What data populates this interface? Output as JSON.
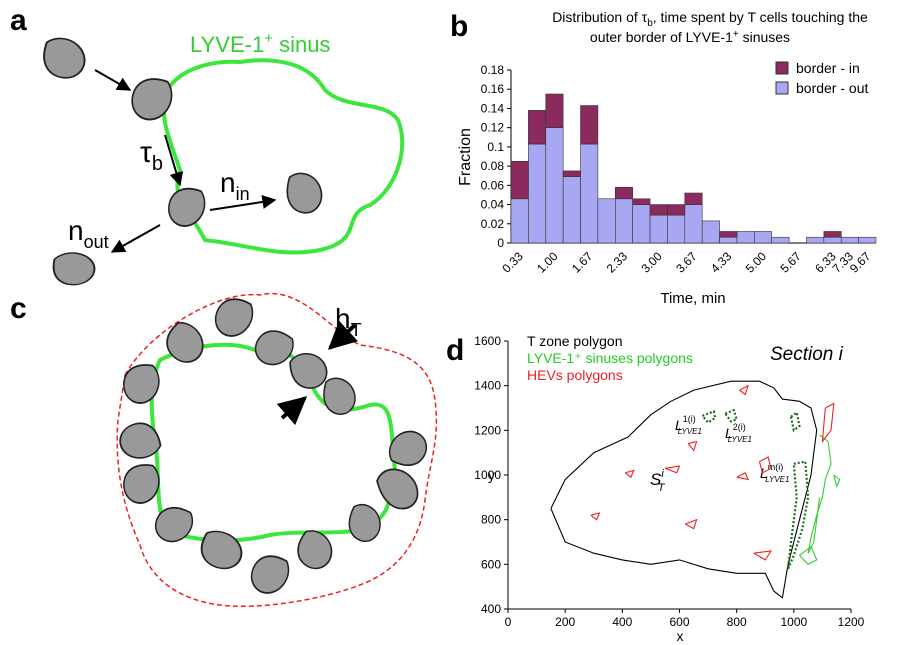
{
  "panels": {
    "a": "a",
    "b": "b",
    "c": "c",
    "d": "d"
  },
  "diagram_a": {
    "sinus": {
      "main": "LYVE-1",
      "sup": "+",
      "after": " sinus"
    },
    "tau": {
      "main": "τ",
      "sub": "b"
    },
    "n_in": {
      "main": "n",
      "sub": "in"
    },
    "n_out": {
      "main": "n",
      "sub": "out"
    }
  },
  "diagram_c": {
    "h": {
      "main": "h",
      "sub": "T"
    }
  },
  "chart_data": [
    {
      "type": "bar",
      "stacked": true,
      "title": {
        "line1": {
          "before": "Distribution of  τ",
          "sub": "b",
          "after": ", time spent by T cells  touching the"
        },
        "line2": {
          "before": "outer border of LYVE-1",
          "sup": "+",
          "after": " sinuses"
        }
      },
      "x_label": "Time, min",
      "y_label": "Fraction",
      "categories": [
        "0.33",
        null,
        "1.00",
        null,
        "1.67",
        null,
        "2.33",
        null,
        "3.00",
        null,
        "3.67",
        null,
        "4.33",
        null,
        "5.00",
        null,
        "5.67",
        null,
        "6.33",
        "7.33",
        "9.67"
      ],
      "series": [
        {
          "name": "border - out",
          "color": "#a8a8f2",
          "values": [
            0.046,
            0.103,
            0.12,
            0.069,
            0.103,
            0.046,
            0.046,
            0.04,
            0.029,
            0.029,
            0.04,
            0.023,
            0.006,
            0.012,
            0.012,
            0.006,
            0,
            0.006,
            0.006,
            0.006,
            0.006
          ]
        },
        {
          "name": "border - in",
          "color": "#8b2a5c",
          "values": [
            0.039,
            0.035,
            0.035,
            0.006,
            0.04,
            0,
            0.012,
            0.006,
            0.011,
            0.011,
            0.012,
            0,
            0.006,
            0,
            0,
            0,
            0,
            0,
            0.006,
            0,
            0
          ]
        }
      ],
      "ylim": [
        0,
        0.18
      ],
      "yticks": [
        0,
        0.02,
        0.04,
        0.06,
        0.08,
        0.1,
        0.12,
        0.14,
        0.16,
        0.18
      ],
      "legend": "upper right"
    },
    {
      "type": "polygon",
      "x_label": "x",
      "y_label": "y",
      "xlim": [
        0,
        1200
      ],
      "xticks": [
        0,
        200,
        400,
        600,
        800,
        1000,
        1200
      ],
      "ylim": [
        400,
        1600
      ],
      "yticks": [
        400,
        600,
        800,
        1000,
        1200,
        1400,
        1600
      ],
      "annotation": "Section i",
      "region_label": {
        "main": "S",
        "sup": "i",
        "sub": "T"
      },
      "polygon_labels": [
        {
          "main": "L",
          "sup": "1(i)",
          "sub": "LYVE1"
        },
        {
          "main": "L",
          "sup": "2(i)",
          "sub": "LYVE1"
        },
        {
          "main": "L",
          "sup": "m(i)",
          "sub": "LYVE1"
        }
      ],
      "series": [
        {
          "name": "T zone polygon",
          "color": "#000000",
          "polygons": [
            {
              "x": [
                150,
                200,
                300,
                420,
                500,
                570,
                650,
                780,
                880,
                930,
                960,
                1020,
                1060,
                1080,
                1070,
                1060,
                1040,
                1020,
                1000,
                980,
                960,
                930,
                900,
                800,
                700,
                600,
                500,
                400,
                300,
                200,
                150
              ],
              "y": [
                850,
                980,
                1100,
                1170,
                1270,
                1330,
                1380,
                1420,
                1420,
                1390,
                1340,
                1330,
                1300,
                1200,
                1100,
                1000,
                900,
                800,
                700,
                600,
                450,
                480,
                560,
                560,
                580,
                620,
                600,
                620,
                650,
                700,
                850
              ]
            }
          ]
        },
        {
          "name": "LYVE-1⁺ sinuses polygons",
          "color": "#33cc33",
          "polygons": [
            {
              "x": [
                1090,
                1120,
                1130,
                1110,
                1100,
                1080,
                1060,
                1050,
                1070,
                1090
              ],
              "y": [
                1180,
                1150,
                1050,
                980,
                900,
                820,
                720,
                650,
                700,
                900
              ]
            },
            {
              "x": [
                1140,
                1160,
                1150,
                1140
              ],
              "y": [
                1000,
                980,
                950,
                1000
              ]
            },
            {
              "x": [
                1020,
                1060,
                1080,
                1050,
                1020
              ],
              "y": [
                640,
                680,
                620,
                600,
                640
              ]
            }
          ],
          "highlighted": {
            "color": "#1a6e1a",
            "polygons": [
              {
                "x": [
                  680,
                  720,
                  725,
                  700,
                  680
                ],
                "y": [
                  1265,
                  1285,
                  1255,
                  1235,
                  1265
                ]
              },
              {
                "x": [
                  760,
                  790,
                  800,
                  780,
                  760
                ],
                "y": [
                  1275,
                  1290,
                  1250,
                  1240,
                  1275
                ]
              },
              {
                "x": [
                  990,
                  1010,
                  1020,
                  1000,
                  990
                ],
                "y": [
                  1260,
                  1280,
                  1220,
                  1200,
                  1260
                ]
              },
              {
                "x": [
                  1000,
                  1040,
                  1050,
                  1030,
                  1000,
                  980,
                  990,
                  1010,
                  1000
                ],
                "y": [
                  1050,
                  1060,
                  900,
                  760,
                  640,
                  580,
                  700,
                  900,
                  1050
                ]
              }
            ]
          }
        },
        {
          "name": "HEVs polygons",
          "color": "#ee2222",
          "polygons": [
            {
              "x": [
                410,
                440,
                430,
                410
              ],
              "y": [
                1010,
                1020,
                990,
                1010
              ]
            },
            {
              "x": [
                630,
                660,
                650,
                630
              ],
              "y": [
                1140,
                1150,
                1110,
                1140
              ]
            },
            {
              "x": [
                550,
                600,
                590,
                550
              ],
              "y": [
                1030,
                1040,
                1010,
                1030
              ]
            },
            {
              "x": [
                880,
                910,
                920,
                890,
                880
              ],
              "y": [
                1060,
                1080,
                1030,
                1010,
                1060
              ]
            },
            {
              "x": [
                800,
                830,
                840,
                800
              ],
              "y": [
                990,
                1010,
                980,
                990
              ]
            },
            {
              "x": [
                620,
                660,
                650,
                620
              ],
              "y": [
                780,
                800,
                760,
                780
              ]
            },
            {
              "x": [
                290,
                320,
                310,
                290
              ],
              "y": [
                820,
                830,
                800,
                820
              ]
            },
            {
              "x": [
                810,
                840,
                830,
                810
              ],
              "y": [
                1380,
                1400,
                1360,
                1380
              ]
            },
            {
              "x": [
                1110,
                1140,
                1130,
                1100,
                1110
              ],
              "y": [
                1300,
                1320,
                1200,
                1150,
                1300
              ]
            },
            {
              "x": [
                860,
                920,
                900,
                860
              ],
              "y": [
                650,
                660,
                620,
                650
              ]
            }
          ]
        }
      ],
      "legend": "upper left"
    }
  ]
}
